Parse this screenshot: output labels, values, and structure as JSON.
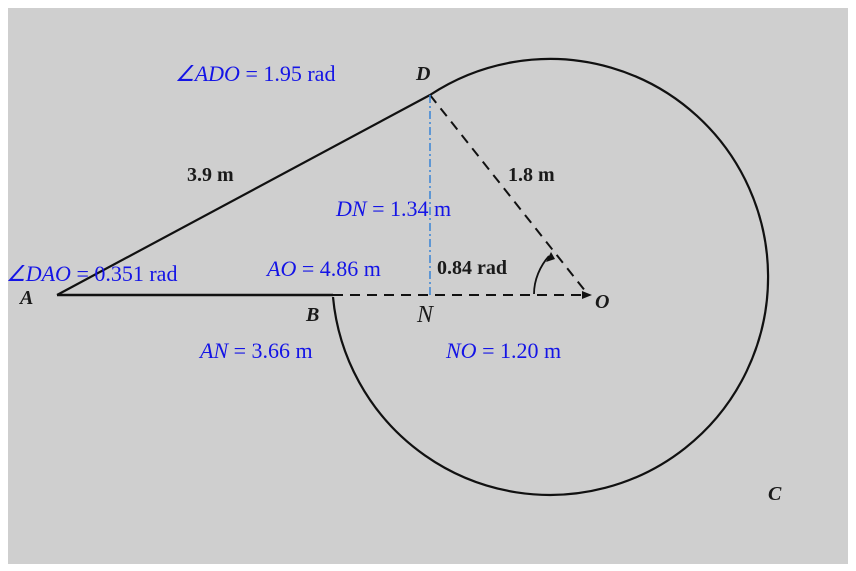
{
  "colors": {
    "background": "#cfcfcf",
    "line": "#111111",
    "annotation_blue": "#1414e6",
    "dashdot_blue": "#2f7fd6"
  },
  "points": {
    "A": "A",
    "B": "B",
    "C": "C",
    "D": "D",
    "N": "N",
    "O": "O"
  },
  "original_labels": {
    "AD": "3.9 m",
    "DO": "1.8 m",
    "angle_O": "0.84 rad"
  },
  "annotations": {
    "angle_ADO": {
      "name": "∠ADO",
      "eq": " = ",
      "value": "1.95 rad"
    },
    "DN": {
      "name": "DN",
      "eq": " = ",
      "value": "1.34 m"
    },
    "angle_DAO": {
      "name": "∠DAO",
      "eq": " = ",
      "value": "0.351 rad"
    },
    "AO": {
      "name": "AO",
      "eq": " = ",
      "value": "4.86 m"
    },
    "AN": {
      "name": "AN",
      "eq": " = ",
      "value": "3.66 m"
    },
    "NO": {
      "name": "NO",
      "eq": " = ",
      "value": "1.20 m"
    }
  }
}
